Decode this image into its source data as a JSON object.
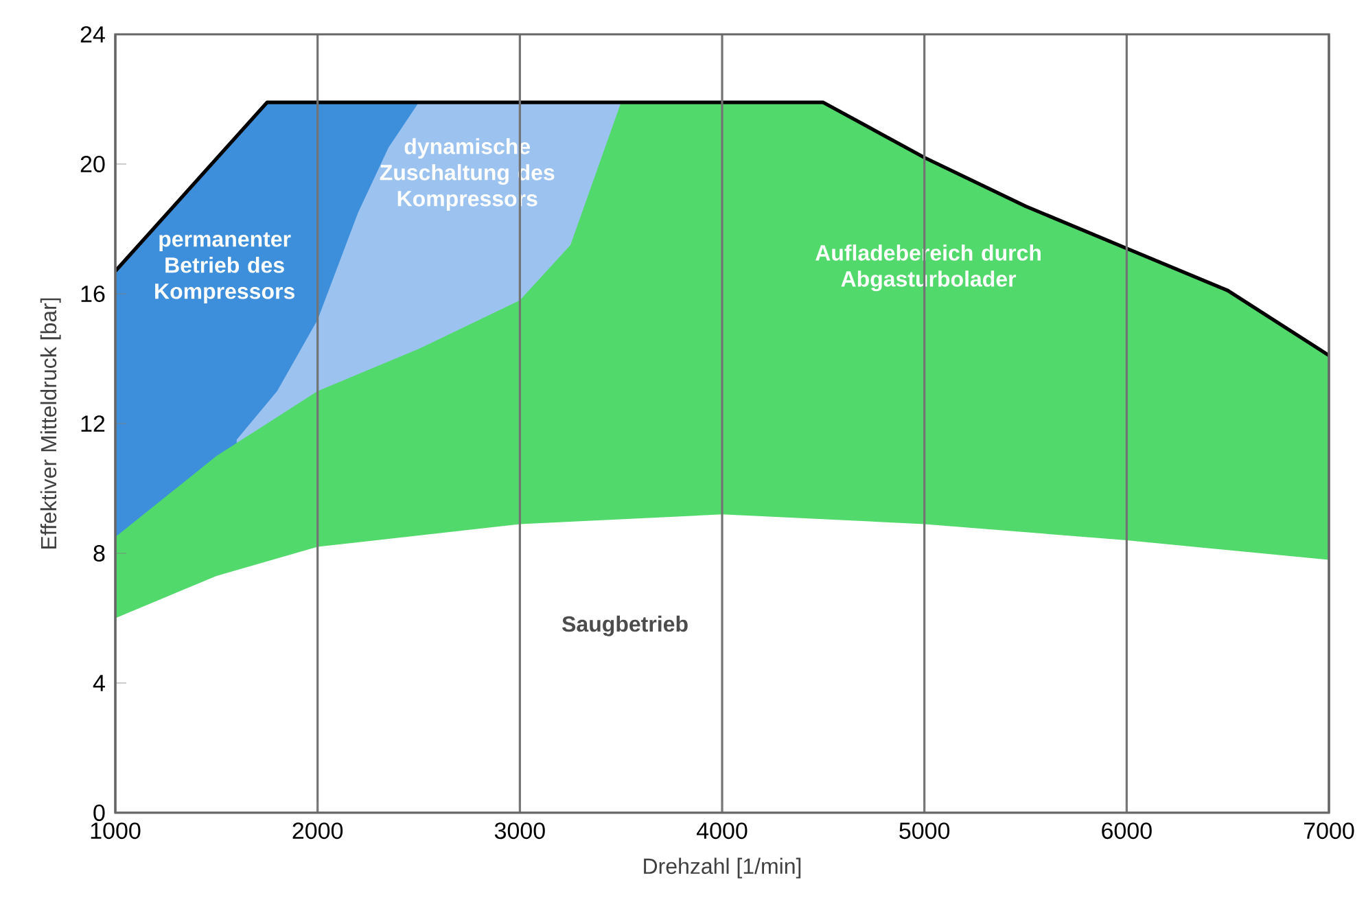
{
  "chart_data": {
    "type": "area",
    "xlabel": "Drehzahl [1/min]",
    "ylabel": "Effektiver Mitteldruck [bar]",
    "xlim": [
      1000,
      7000
    ],
    "ylim": [
      0,
      24
    ],
    "xticks": [
      1000,
      2000,
      3000,
      4000,
      5000,
      6000,
      7000
    ],
    "yticks": [
      0,
      4,
      8,
      12,
      16,
      20,
      24
    ],
    "grid": "x",
    "series": [
      {
        "name": "permanenter Betrieb des Kompressors",
        "color": "#3d8fdc",
        "x": [
          1000,
          1750,
          2500
        ],
        "values": [
          16.7,
          21.9,
          21.9
        ]
      },
      {
        "name": "dynamische Zuschaltung des Kompressors",
        "color": "#9cc3ef",
        "x": [
          1600,
          1800,
          2000,
          2200,
          2350,
          2500,
          3500
        ],
        "values": [
          11.5,
          13,
          15.2,
          18.5,
          20.5,
          21.9,
          21.9
        ]
      },
      {
        "name": "Aufladebereich durch Abgasturbolader",
        "color": "#52d96c",
        "x": [
          1000,
          1500,
          2000,
          2500,
          3000,
          3250,
          3500,
          4500,
          5000,
          5500,
          6000,
          6500,
          7000
        ],
        "values": [
          8.5,
          11,
          13,
          14.3,
          15.8,
          17.5,
          21.9,
          21.9,
          20.2,
          18.7,
          17.4,
          16.1,
          14.1
        ]
      },
      {
        "name": "Saugbetrieb",
        "color": "#ffffff",
        "x": [
          1000,
          1500,
          2000,
          3000,
          4000,
          5000,
          6000,
          7000
        ],
        "values": [
          6,
          7.3,
          8.2,
          8.9,
          9.2,
          8.9,
          8.4,
          7.8
        ]
      },
      {
        "type": "line",
        "color": "#000000",
        "x": [
          1000,
          1750,
          4500,
          5000,
          5500,
          6000,
          6500,
          7000
        ],
        "values": [
          16.7,
          21.9,
          21.9,
          20.2,
          18.7,
          17.4,
          16.1,
          14.1
        ]
      }
    ]
  }
}
